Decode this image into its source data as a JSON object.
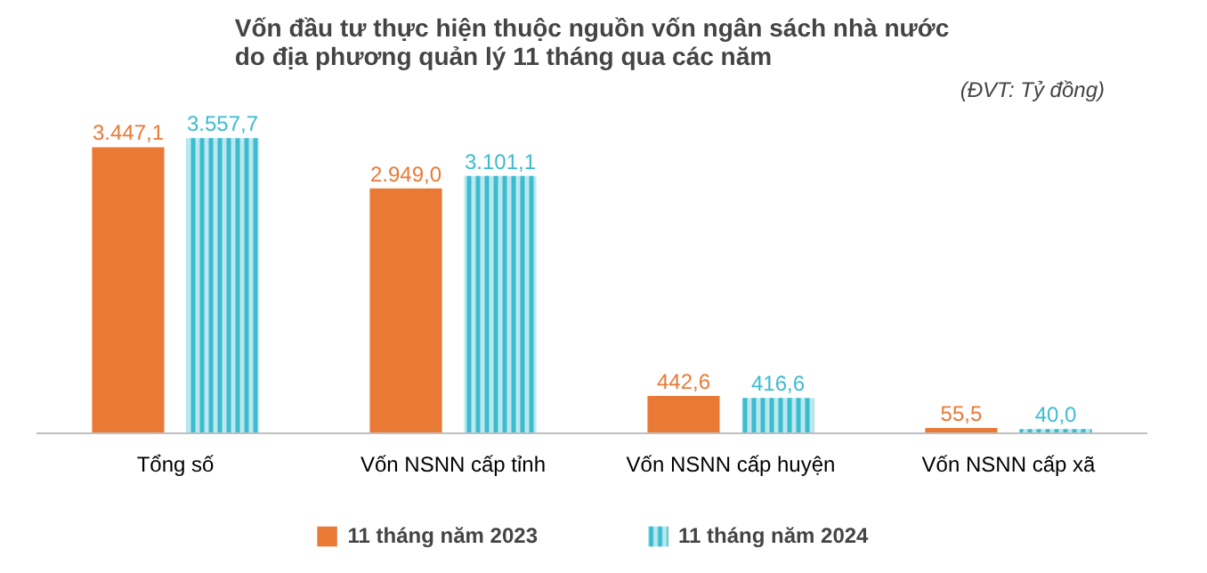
{
  "chart_data": {
    "type": "bar",
    "title": "Vốn đầu tư thực hiện thuộc nguồn vốn ngân sách nhà nước\ndo địa phương quản lý 11 tháng qua các năm",
    "annotations": [
      "(ĐVT: Tỷ đồng)"
    ],
    "categories": [
      "Tổng số",
      "Vốn NSNN cấp tỉnh",
      "Vốn NSNN cấp huyện",
      "Vốn NSNN cấp xã"
    ],
    "series": [
      {
        "name": "11 tháng năm 2023",
        "color": "#e97a35",
        "values": [
          3447.1,
          2949.0,
          442.6,
          55.5
        ],
        "value_labels": [
          "3.447,1",
          "2.949,0",
          "442,6",
          "55,5"
        ]
      },
      {
        "name": "11 tháng năm 2024",
        "color": "#3cbccf",
        "values": [
          3557.7,
          3101.1,
          416.6,
          40.0
        ],
        "value_labels": [
          "3.557,7",
          "3.101,1",
          "416,6",
          "40,0"
        ]
      }
    ],
    "legend": "bottom"
  }
}
